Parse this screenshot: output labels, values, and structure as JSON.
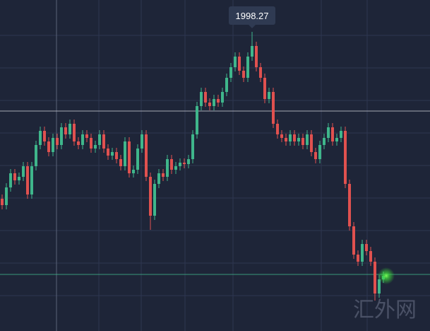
{
  "chart_data": {
    "type": "candlestick",
    "high_label": "1998.27",
    "watermark": "汇外网",
    "up_color": "#3fb68b",
    "down_color": "#e0514f",
    "ylim": [
      1786.77,
      2020.77
    ],
    "reference_lines": [
      {
        "value": 1942.27,
        "color": "#c9ccd4"
      },
      {
        "value": 1826.77,
        "color": "#3fb68b"
      }
    ],
    "open": [
      1880.27,
      1875.77,
      1888.27,
      1898.27,
      1893.27,
      1895.77,
      1903.27,
      1883.27,
      1903.27,
      1918.27,
      1928.27,
      1920.77,
      1913.27,
      1923.27,
      1918.27,
      1930.77,
      1925.77,
      1933.27,
      1920.77,
      1918.27,
      1925.77,
      1923.27,
      1915.77,
      1918.27,
      1925.77,
      1915.77,
      1910.77,
      1913.27,
      1908.27,
      1903.27,
      1920.77,
      1898.27,
      1900.77,
      1915.77,
      1925.77,
      1895.77,
      1868.27,
      1890.77,
      1898.27,
      1895.77,
      1908.27,
      1900.77,
      1903.27,
      1905.77,
      1904.77,
      1908.27,
      1925.77,
      1945.77,
      1955.77,
      1948.27,
      1945.77,
      1950.77,
      1948.27,
      1955.77,
      1965.77,
      1973.27,
      1980.77,
      1970.77,
      1965.77,
      1980.77,
      1988.27,
      1973.27,
      1965.77,
      1950.77,
      1955.77,
      1933.27,
      1925.77,
      1923.27,
      1920.77,
      1925.77,
      1920.77,
      1923.27,
      1918.27,
      1925.77,
      1913.27,
      1908.27,
      1918.27,
      1923.27,
      1930.77,
      1920.77,
      1923.27,
      1928.27,
      1890.77,
      1860.77,
      1840.77,
      1835.77,
      1848.27,
      1843.27,
      1835.77,
      1813.27,
      1823.27
    ],
    "high": [
      1883.27,
      1891.27,
      1901.27,
      1901.27,
      1898.77,
      1906.27,
      1906.27,
      1906.27,
      1921.27,
      1931.27,
      1931.27,
      1923.77,
      1926.27,
      1926.27,
      1933.77,
      1933.77,
      1936.27,
      1936.27,
      1923.77,
      1928.77,
      1928.77,
      1926.27,
      1921.27,
      1928.77,
      1928.77,
      1918.77,
      1916.27,
      1916.27,
      1911.27,
      1923.77,
      1923.77,
      1903.77,
      1918.77,
      1928.77,
      1928.77,
      1898.77,
      1893.77,
      1901.27,
      1901.27,
      1911.27,
      1911.27,
      1906.27,
      1908.77,
      1908.77,
      1911.27,
      1928.77,
      1948.77,
      1958.77,
      1958.77,
      1951.27,
      1953.77,
      1953.77,
      1958.77,
      1968.77,
      1976.27,
      1983.77,
      1983.77,
      1973.77,
      1983.77,
      1998.27,
      1991.27,
      1976.27,
      1968.77,
      1958.77,
      1958.77,
      1936.27,
      1928.77,
      1926.27,
      1928.77,
      1928.77,
      1926.27,
      1926.27,
      1928.77,
      1928.77,
      1916.27,
      1921.27,
      1926.27,
      1933.77,
      1933.77,
      1926.27,
      1931.27,
      1931.27,
      1893.77,
      1863.77,
      1843.77,
      1851.27,
      1851.27,
      1846.27,
      1838.77,
      1826.27,
      1828.77
    ],
    "low": [
      1872.77,
      1872.77,
      1885.27,
      1890.27,
      1890.27,
      1892.77,
      1880.27,
      1880.27,
      1900.27,
      1915.27,
      1917.77,
      1910.27,
      1910.27,
      1915.27,
      1915.27,
      1922.77,
      1922.77,
      1917.77,
      1915.27,
      1915.27,
      1920.27,
      1912.77,
      1912.77,
      1915.27,
      1912.77,
      1907.77,
      1907.77,
      1905.27,
      1900.27,
      1900.27,
      1895.27,
      1895.27,
      1897.77,
      1912.77,
      1892.77,
      1858.27,
      1865.27,
      1887.77,
      1892.77,
      1892.77,
      1897.77,
      1897.77,
      1900.27,
      1901.77,
      1901.77,
      1905.27,
      1922.77,
      1942.77,
      1945.27,
      1942.77,
      1942.77,
      1945.27,
      1945.27,
      1952.77,
      1962.77,
      1970.27,
      1967.77,
      1962.77,
      1962.77,
      1977.77,
      1970.27,
      1962.77,
      1947.77,
      1947.77,
      1930.27,
      1922.77,
      1920.27,
      1917.77,
      1917.77,
      1917.77,
      1917.77,
      1915.27,
      1915.27,
      1910.27,
      1905.27,
      1905.27,
      1915.27,
      1920.27,
      1917.77,
      1917.77,
      1920.27,
      1887.77,
      1857.77,
      1837.77,
      1832.77,
      1832.77,
      1840.27,
      1832.77,
      1808.27,
      1810.27,
      1820.77
    ],
    "close": [
      1875.77,
      1888.27,
      1898.27,
      1893.27,
      1895.77,
      1903.27,
      1883.27,
      1903.27,
      1918.27,
      1928.27,
      1920.77,
      1913.27,
      1923.27,
      1918.27,
      1930.77,
      1925.77,
      1933.27,
      1920.77,
      1918.27,
      1925.77,
      1923.27,
      1915.77,
      1918.27,
      1925.77,
      1915.77,
      1910.77,
      1913.27,
      1908.27,
      1903.27,
      1920.77,
      1898.27,
      1900.77,
      1915.77,
      1925.77,
      1895.77,
      1868.27,
      1890.77,
      1898.27,
      1895.77,
      1908.27,
      1900.77,
      1903.27,
      1905.77,
      1904.77,
      1908.27,
      1925.77,
      1945.77,
      1955.77,
      1948.27,
      1945.77,
      1950.77,
      1948.27,
      1955.77,
      1965.77,
      1973.27,
      1980.77,
      1970.77,
      1965.77,
      1980.77,
      1988.27,
      1973.27,
      1965.77,
      1950.77,
      1955.77,
      1933.27,
      1925.77,
      1923.27,
      1920.77,
      1925.77,
      1920.77,
      1923.27,
      1918.27,
      1925.77,
      1913.27,
      1908.27,
      1918.27,
      1923.27,
      1930.77,
      1920.77,
      1923.27,
      1928.27,
      1890.77,
      1860.77,
      1840.77,
      1835.77,
      1848.27,
      1843.27,
      1835.77,
      1813.27,
      1823.27,
      1825.77
    ]
  }
}
